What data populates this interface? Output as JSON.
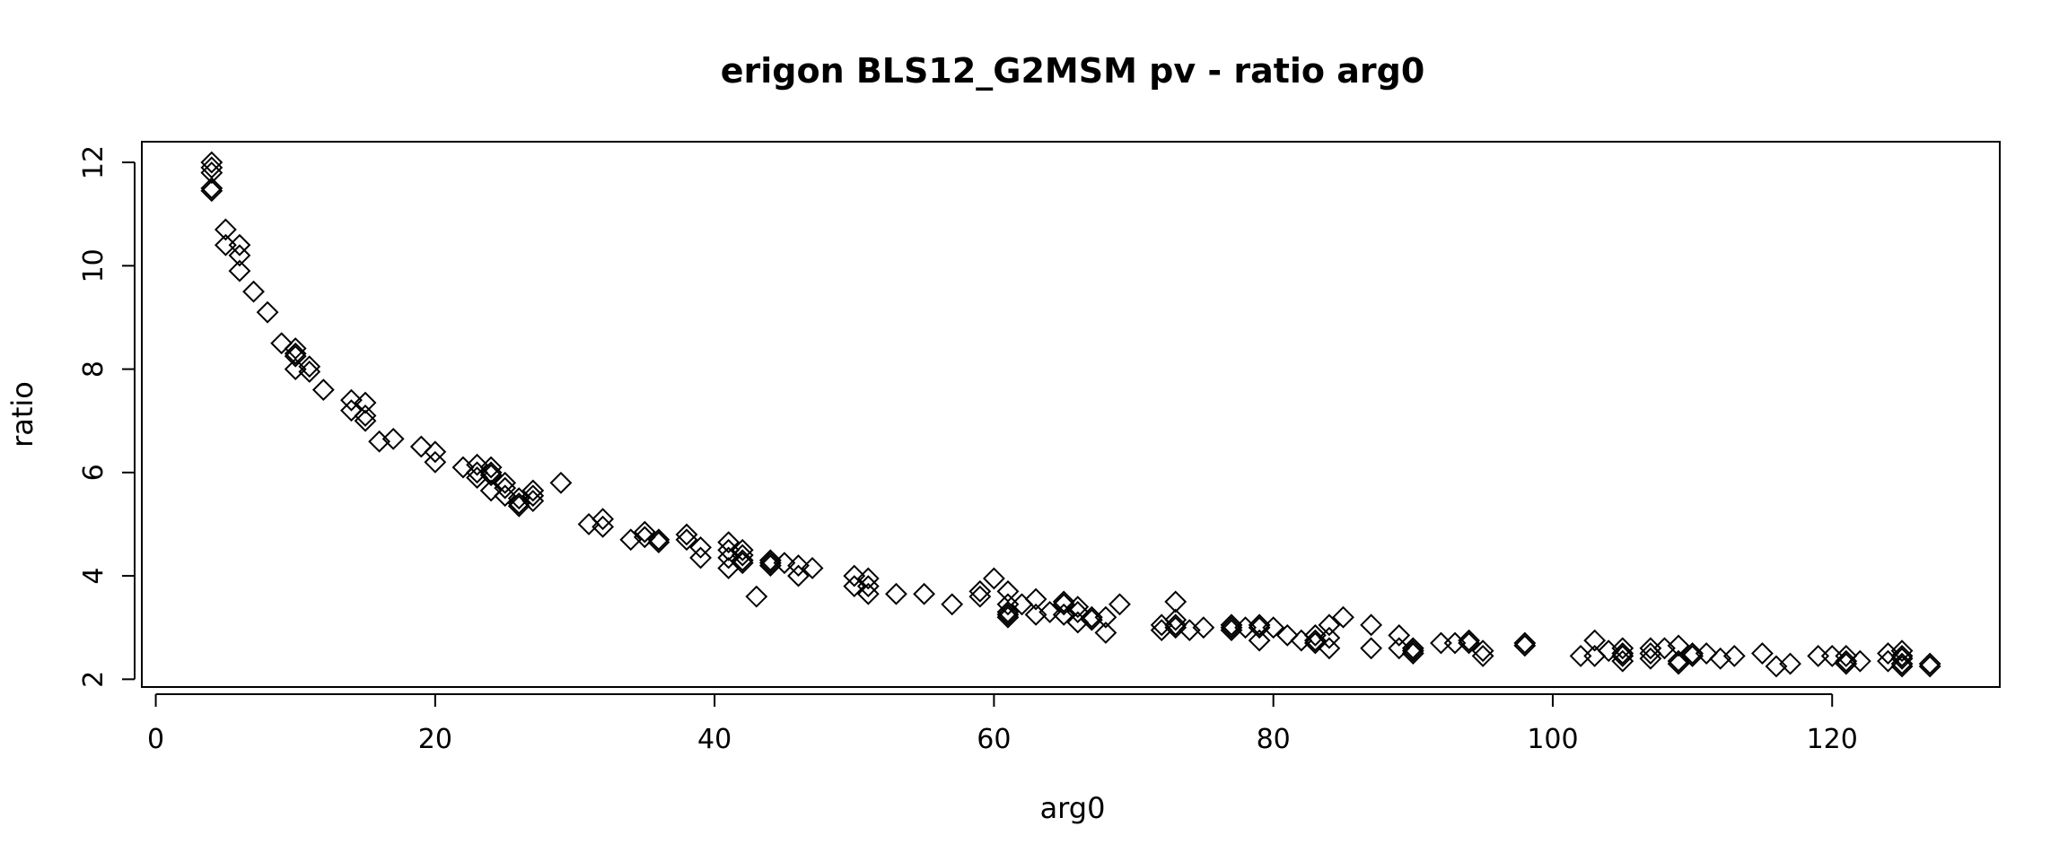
{
  "chart_data": {
    "type": "scatter",
    "title": "erigon BLS12_G2MSM pv - ratio arg0",
    "xlabel": "arg0",
    "ylabel": "ratio",
    "xlim": [
      -1.0,
      132.0
    ],
    "ylim": [
      1.85,
      12.4
    ],
    "x_ticks": [
      0,
      20,
      40,
      60,
      80,
      100,
      120
    ],
    "y_ticks": [
      2,
      4,
      6,
      8,
      10,
      12
    ],
    "grid": false,
    "marker": "diamond",
    "series": [
      {
        "points": [
          [
            4,
            12.0
          ],
          [
            4,
            11.9
          ],
          [
            4,
            11.8
          ],
          [
            4,
            11.5
          ],
          [
            4,
            11.45
          ],
          [
            5,
            10.7
          ],
          [
            5,
            10.4
          ],
          [
            6,
            10.4
          ],
          [
            6,
            10.2
          ],
          [
            6,
            9.9
          ],
          [
            7,
            9.5
          ],
          [
            8,
            9.1
          ],
          [
            9,
            8.5
          ],
          [
            10,
            8.4
          ],
          [
            10,
            8.3
          ],
          [
            10,
            8.25
          ],
          [
            10,
            8.0
          ],
          [
            11,
            8.05
          ],
          [
            11,
            7.95
          ],
          [
            12,
            7.6
          ],
          [
            14,
            7.4
          ],
          [
            14,
            7.2
          ],
          [
            15,
            7.35
          ],
          [
            15,
            7.1
          ],
          [
            15,
            7.0
          ],
          [
            16,
            6.6
          ],
          [
            17,
            6.65
          ],
          [
            19,
            6.5
          ],
          [
            20,
            6.4
          ],
          [
            20,
            6.2
          ],
          [
            22,
            6.1
          ],
          [
            23,
            6.15
          ],
          [
            23,
            6.0
          ],
          [
            23,
            5.9
          ],
          [
            24,
            6.1
          ],
          [
            24,
            6.0
          ],
          [
            24,
            5.95
          ],
          [
            24,
            5.65
          ],
          [
            25,
            5.8
          ],
          [
            25,
            5.7
          ],
          [
            25,
            5.55
          ],
          [
            26,
            5.5
          ],
          [
            26,
            5.4
          ],
          [
            26,
            5.35
          ],
          [
            27,
            5.65
          ],
          [
            27,
            5.55
          ],
          [
            27,
            5.45
          ],
          [
            29,
            5.8
          ],
          [
            31,
            5.0
          ],
          [
            32,
            5.1
          ],
          [
            32,
            4.95
          ],
          [
            34,
            4.7
          ],
          [
            35,
            4.85
          ],
          [
            35,
            4.75
          ],
          [
            36,
            4.7
          ],
          [
            36,
            4.65
          ],
          [
            38,
            4.8
          ],
          [
            38,
            4.7
          ],
          [
            39,
            4.55
          ],
          [
            39,
            4.35
          ],
          [
            41,
            4.65
          ],
          [
            41,
            4.5
          ],
          [
            41,
            4.35
          ],
          [
            41,
            4.15
          ],
          [
            42,
            4.5
          ],
          [
            42,
            4.4
          ],
          [
            42,
            4.3
          ],
          [
            42,
            4.25
          ],
          [
            43,
            3.6
          ],
          [
            44,
            4.3
          ],
          [
            44,
            4.25
          ],
          [
            44,
            4.2
          ],
          [
            45,
            4.25
          ],
          [
            46,
            4.2
          ],
          [
            46,
            4.0
          ],
          [
            47,
            4.15
          ],
          [
            50,
            4.0
          ],
          [
            50,
            3.8
          ],
          [
            51,
            3.95
          ],
          [
            51,
            3.8
          ],
          [
            51,
            3.65
          ],
          [
            53,
            3.65
          ],
          [
            55,
            3.65
          ],
          [
            57,
            3.45
          ],
          [
            59,
            3.7
          ],
          [
            59,
            3.6
          ],
          [
            60,
            3.95
          ],
          [
            61,
            3.7
          ],
          [
            61,
            3.45
          ],
          [
            61,
            3.3
          ],
          [
            61,
            3.25
          ],
          [
            61,
            3.2
          ],
          [
            62,
            3.45
          ],
          [
            63,
            3.55
          ],
          [
            63,
            3.25
          ],
          [
            64,
            3.3
          ],
          [
            65,
            3.5
          ],
          [
            65,
            3.45
          ],
          [
            65,
            3.25
          ],
          [
            66,
            3.4
          ],
          [
            66,
            3.3
          ],
          [
            66,
            3.1
          ],
          [
            67,
            3.2
          ],
          [
            67,
            3.15
          ],
          [
            68,
            3.2
          ],
          [
            68,
            2.9
          ],
          [
            69,
            3.45
          ],
          [
            72,
            3.05
          ],
          [
            72,
            2.95
          ],
          [
            73,
            3.5
          ],
          [
            73,
            3.15
          ],
          [
            73,
            3.05
          ],
          [
            73,
            3.0
          ],
          [
            74,
            2.95
          ],
          [
            75,
            3.0
          ],
          [
            77,
            3.05
          ],
          [
            77,
            3.0
          ],
          [
            77,
            2.95
          ],
          [
            78,
            3.0
          ],
          [
            79,
            3.05
          ],
          [
            79,
            3.0
          ],
          [
            79,
            2.75
          ],
          [
            80,
            3.0
          ],
          [
            81,
            2.85
          ],
          [
            82,
            2.75
          ],
          [
            83,
            2.85
          ],
          [
            83,
            2.75
          ],
          [
            83,
            2.7
          ],
          [
            84,
            3.05
          ],
          [
            84,
            2.8
          ],
          [
            84,
            2.6
          ],
          [
            85,
            3.2
          ],
          [
            87,
            3.05
          ],
          [
            87,
            2.6
          ],
          [
            89,
            2.85
          ],
          [
            89,
            2.6
          ],
          [
            90,
            2.6
          ],
          [
            90,
            2.55
          ],
          [
            90,
            2.5
          ],
          [
            92,
            2.7
          ],
          [
            93,
            2.7
          ],
          [
            94,
            2.75
          ],
          [
            94,
            2.7
          ],
          [
            95,
            2.55
          ],
          [
            95,
            2.45
          ],
          [
            98,
            2.7
          ],
          [
            98,
            2.65
          ],
          [
            102,
            2.45
          ],
          [
            103,
            2.75
          ],
          [
            103,
            2.45
          ],
          [
            104,
            2.55
          ],
          [
            105,
            2.6
          ],
          [
            105,
            2.5
          ],
          [
            105,
            2.45
          ],
          [
            105,
            2.35
          ],
          [
            107,
            2.6
          ],
          [
            107,
            2.5
          ],
          [
            107,
            2.4
          ],
          [
            108,
            2.6
          ],
          [
            109,
            2.65
          ],
          [
            109,
            2.35
          ],
          [
            109,
            2.3
          ],
          [
            110,
            2.5
          ],
          [
            110,
            2.45
          ],
          [
            111,
            2.5
          ],
          [
            112,
            2.4
          ],
          [
            113,
            2.45
          ],
          [
            115,
            2.5
          ],
          [
            116,
            2.25
          ],
          [
            117,
            2.3
          ],
          [
            119,
            2.45
          ],
          [
            120,
            2.45
          ],
          [
            121,
            2.45
          ],
          [
            121,
            2.35
          ],
          [
            121,
            2.3
          ],
          [
            122,
            2.35
          ],
          [
            124,
            2.5
          ],
          [
            124,
            2.35
          ],
          [
            125,
            2.55
          ],
          [
            125,
            2.45
          ],
          [
            125,
            2.4
          ],
          [
            125,
            2.3
          ],
          [
            125,
            2.25
          ],
          [
            127,
            2.3
          ],
          [
            127,
            2.25
          ]
        ]
      }
    ]
  }
}
